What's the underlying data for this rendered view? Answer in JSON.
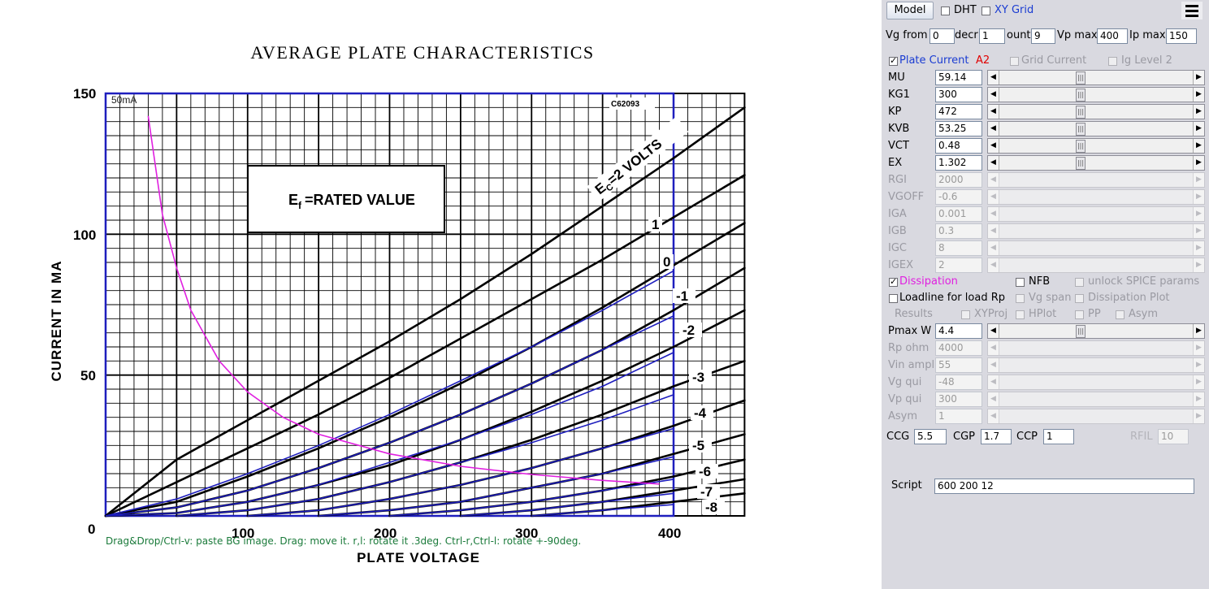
{
  "plot": {
    "title": "AVERAGE PLATE CHARACTERISTICS",
    "code": "C62093",
    "corner_label": "50mA",
    "filament_box": "E",
    "filament_sub": "f",
    "filament_rest": "=RATED VALUE",
    "ec_label_a": "E",
    "ec_label_sub": "C",
    "ec_label_b": "=2 VOLTS",
    "xlabel": "PLATE VOLTAGE",
    "ylabel": "CURRENT IN MA",
    "y_ticks": [
      "150",
      "100",
      "50",
      "0"
    ],
    "x_ticks": [
      "100",
      "200",
      "300",
      "400"
    ],
    "curve_labels": [
      "1",
      "0",
      "-1",
      "-2",
      "-3",
      "-4",
      "-5",
      "-6",
      "-7",
      "-8"
    ],
    "hint": "Drag&Drop/Ctrl-v: paste BG image. Drag: move it. r,l: rotate it .3deg. Ctrl-r,Ctrl-l: rotate +-90deg.",
    "colors": {
      "grid": "#000000",
      "model_curve": "#1e1ebe",
      "dissipation": "#e020e0",
      "hint": "#1a7a3a"
    }
  },
  "chart_data": {
    "type": "line",
    "title": "AVERAGE PLATE CHARACTERISTICS",
    "xlabel": "PLATE VOLTAGE",
    "ylabel": "CURRENT IN MA",
    "xlim": [
      0,
      450
    ],
    "ylim": [
      0,
      150
    ],
    "series": [
      {
        "name": "2",
        "x": [
          0,
          50,
          100,
          150,
          200,
          250,
          300,
          350,
          400,
          450
        ],
        "y": [
          0,
          20,
          34,
          48,
          62,
          77,
          93,
          110,
          127,
          145
        ]
      },
      {
        "name": "1",
        "x": [
          0,
          50,
          100,
          150,
          200,
          250,
          300,
          350,
          400,
          450
        ],
        "y": [
          0,
          12,
          24,
          36,
          49,
          63,
          77,
          91,
          106,
          121
        ]
      },
      {
        "name": "0",
        "x": [
          0,
          50,
          100,
          150,
          200,
          250,
          300,
          350,
          400,
          450
        ],
        "y": [
          0,
          5,
          14,
          24,
          35,
          47,
          60,
          74,
          89,
          104
        ]
      },
      {
        "name": "-1",
        "x": [
          0,
          50,
          100,
          150,
          200,
          250,
          300,
          350,
          400,
          450
        ],
        "y": [
          0,
          3,
          9,
          17,
          26,
          36,
          47,
          59,
          73,
          88
        ]
      },
      {
        "name": "-2",
        "x": [
          0,
          50,
          100,
          150,
          200,
          250,
          300,
          350,
          400,
          450
        ],
        "y": [
          0,
          1,
          5,
          11,
          18,
          27,
          37,
          48,
          60,
          73
        ]
      },
      {
        "name": "-3",
        "x": [
          50,
          100,
          150,
          200,
          250,
          300,
          350,
          400,
          450
        ],
        "y": [
          0,
          2,
          6,
          12,
          19,
          27,
          36,
          46,
          55
        ]
      },
      {
        "name": "-4",
        "x": [
          100,
          150,
          200,
          250,
          300,
          350,
          400,
          450
        ],
        "y": [
          0,
          2,
          6,
          11,
          17,
          24,
          32,
          41
        ]
      },
      {
        "name": "-5",
        "x": [
          150,
          200,
          250,
          300,
          350,
          400,
          450
        ],
        "y": [
          0,
          2,
          5,
          10,
          15,
          22,
          29
        ]
      },
      {
        "name": "-6",
        "x": [
          200,
          250,
          300,
          350,
          400,
          450
        ],
        "y": [
          0,
          2,
          5,
          9,
          14,
          20
        ]
      },
      {
        "name": "-7",
        "x": [
          250,
          300,
          350,
          400,
          450
        ],
        "y": [
          0,
          2,
          5,
          9,
          13
        ]
      },
      {
        "name": "-8",
        "x": [
          300,
          350,
          400,
          450
        ],
        "y": [
          0,
          2,
          5,
          8
        ]
      }
    ],
    "model_series": [
      {
        "name": "0",
        "x": [
          0,
          50,
          100,
          150,
          200,
          250,
          300,
          350,
          400
        ],
        "y": [
          0,
          6,
          15,
          25,
          36,
          48,
          60,
          73,
          87
        ]
      },
      {
        "name": "-1",
        "x": [
          0,
          50,
          100,
          150,
          200,
          250,
          300,
          350,
          400
        ],
        "y": [
          0,
          3,
          9,
          17,
          26,
          36,
          47,
          59,
          71
        ]
      },
      {
        "name": "-2",
        "x": [
          0,
          50,
          100,
          150,
          200,
          250,
          300,
          350,
          400
        ],
        "y": [
          0,
          1,
          5,
          11,
          19,
          27,
          36,
          46,
          58
        ]
      },
      {
        "name": "-3",
        "x": [
          50,
          100,
          150,
          200,
          250,
          300,
          350,
          400
        ],
        "y": [
          0,
          2,
          6,
          12,
          19,
          26,
          34,
          43
        ]
      },
      {
        "name": "-4",
        "x": [
          100,
          150,
          200,
          250,
          300,
          350,
          400
        ],
        "y": [
          0,
          2,
          6,
          11,
          17,
          24,
          31
        ]
      },
      {
        "name": "-5",
        "x": [
          150,
          200,
          250,
          300,
          350,
          400
        ],
        "y": [
          0,
          2,
          5,
          10,
          15,
          21
        ]
      },
      {
        "name": "-6",
        "x": [
          200,
          250,
          300,
          350,
          400
        ],
        "y": [
          0,
          2,
          5,
          9,
          13
        ]
      },
      {
        "name": "-7",
        "x": [
          250,
          300,
          350,
          400
        ],
        "y": [
          0,
          2,
          5,
          8
        ]
      },
      {
        "name": "-8",
        "x": [
          300,
          350,
          400
        ],
        "y": [
          0,
          2,
          4
        ]
      }
    ],
    "dissipation": {
      "x": [
        30,
        40,
        50,
        60,
        80,
        100,
        125,
        150,
        200,
        250,
        300,
        350,
        390
      ],
      "y": [
        142,
        107,
        88,
        73,
        55,
        44,
        35,
        29,
        22,
        17.6,
        14.7,
        12.6,
        11.3
      ]
    },
    "grid": true,
    "legend": "none"
  },
  "panel": {
    "model_button": "Model",
    "dht_label": "DHT",
    "xygrid_label": "XY Grid",
    "vg_from_label": "Vg from",
    "vg_from_value": "0",
    "decr_label": "decr",
    "decr_value": "1",
    "count_label": "ount",
    "count_value": "9",
    "vpmax_label": "Vp max",
    "vpmax_value": "400",
    "ipmax_label": "Ip max",
    "ipmax_value": "150",
    "plate_current_label": "Plate Current",
    "a2_label": "A2",
    "grid_current_label": "Grid Current",
    "ig_level_label": "Ig Level 2",
    "params": [
      {
        "label": "MU",
        "value": "59.14",
        "enabled": true
      },
      {
        "label": "KG1",
        "value": "300",
        "enabled": true
      },
      {
        "label": "KP",
        "value": "472",
        "enabled": true
      },
      {
        "label": "KVB",
        "value": "53.25",
        "enabled": true
      },
      {
        "label": "VCT",
        "value": "0.48",
        "enabled": true
      },
      {
        "label": "EX",
        "value": "1.302",
        "enabled": true
      },
      {
        "label": "RGI",
        "value": "2000",
        "enabled": false
      },
      {
        "label": "VGOFF",
        "value": "-0.6",
        "enabled": false
      },
      {
        "label": "IGA",
        "value": "0.001",
        "enabled": false
      },
      {
        "label": "IGB",
        "value": "0.3",
        "enabled": false
      },
      {
        "label": "IGC",
        "value": "8",
        "enabled": false
      },
      {
        "label": "IGEX",
        "value": "2",
        "enabled": false
      }
    ],
    "dissipation_label": "Dissipation",
    "nfb_label": "NFB",
    "unlock_label": "unlock SPICE params",
    "loadline_label": "Loadline for load Rp",
    "vgspan_label": "Vg span",
    "dissplot_label": "Dissipation Plot",
    "results_label": "Results",
    "xyproj_label": "XYProj",
    "hplot_label": "HPlot",
    "pp_label": "PP",
    "asym_cb_label": "Asym",
    "params2": [
      {
        "label": "Pmax W",
        "value": "4.4",
        "enabled": true
      },
      {
        "label": "Rp ohm",
        "value": "4000",
        "enabled": false
      },
      {
        "label": "Vin ampl",
        "value": "55",
        "enabled": false
      },
      {
        "label": "Vg qui",
        "value": "-48",
        "enabled": false
      },
      {
        "label": "Vp qui",
        "value": "300",
        "enabled": false
      },
      {
        "label": "Asym",
        "value": "1",
        "enabled": false
      }
    ],
    "ccg_label": "CCG",
    "ccg_value": "5.5",
    "cgp_label": "CGP",
    "cgp_value": "1.7",
    "ccp_label": "CCP",
    "ccp_value": "1",
    "rfil_label": "RFIL",
    "rfil_value": "10",
    "script_label": "Script",
    "script_value": "600 200 12",
    "colors": {
      "plate_current": "#1a3cd2",
      "a2": "#e00000",
      "dissipation": "#e020e0",
      "xygrid": "#1a3cd2"
    }
  }
}
